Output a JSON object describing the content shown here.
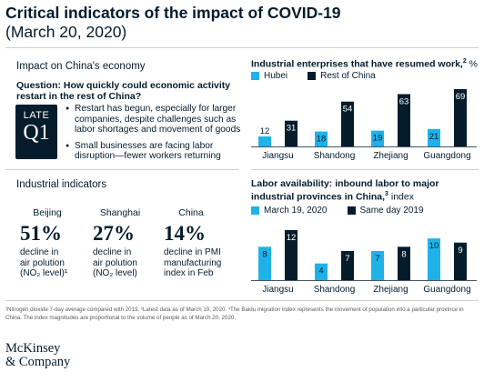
{
  "header": {
    "title": "Critical indicators of the impact of COVID-19",
    "date": "(March 20, 2020)"
  },
  "left": {
    "impact_heading": "Impact on China's economy",
    "question": "Question: How quickly could economic activity restart in the rest of China?",
    "late_label": "LATE",
    "quarter_label": "Q1",
    "bullets": [
      "Restart has begun, especially for larger companies, despite challenges such as labor shortages and movement of goods",
      "Small businesses are facing labor disruption—fewer workers returning"
    ],
    "indicators_heading": "Industrial indicators",
    "indicators": [
      {
        "city": "Beijing",
        "pct": "51%",
        "desc_lines": [
          "decline in",
          "air polution",
          "(NO₂ level)¹"
        ]
      },
      {
        "city": "Shanghai",
        "pct": "27%",
        "desc_lines": [
          "decline in",
          "air polution",
          "(NO₂ level)"
        ]
      },
      {
        "city": "China",
        "pct": "14%",
        "desc_lines": [
          "decline in PMI",
          "manufacturing",
          "index in Feb"
        ]
      }
    ]
  },
  "colors": {
    "light": "#1fb2e8",
    "dark": "#051c2c"
  },
  "chart_data": [
    {
      "type": "bar",
      "title": "Industrial enterprises that have resumed work,",
      "title_sup": "2",
      "unit": " %",
      "categories": [
        "Jiangsu",
        "Shandong",
        "Zhejiang",
        "Guangdong"
      ],
      "series": [
        {
          "name": "Hubei",
          "values": [
            12,
            18,
            19,
            21
          ]
        },
        {
          "name": "Rest of China",
          "values": [
            31,
            54,
            63,
            69
          ]
        }
      ],
      "ylim": [
        0,
        69
      ]
    },
    {
      "type": "bar",
      "title": "Labor availability: inbound labor to major industrial provinces in China,",
      "title_sup": "3",
      "unit": " index",
      "categories": [
        "Jiangsu",
        "Shandong",
        "Zhejiang",
        "Guangdong"
      ],
      "series": [
        {
          "name": "March 19, 2020",
          "values": [
            8,
            4,
            7,
            10
          ]
        },
        {
          "name": "Same day 2019",
          "values": [
            12,
            7,
            8,
            9
          ]
        }
      ],
      "ylim": [
        0,
        12
      ]
    }
  ],
  "footnote": "¹Nitrogen dioxide 7-day average compared with 2019. ²Latest data as of March 19, 2020. ³The Baidu migration index represents the movement of population into a particular province in China. The index magnitudes are proportional to the volume of people as of March 20, 2020.",
  "logo_lines": [
    "McKinsey",
    "& Company"
  ]
}
